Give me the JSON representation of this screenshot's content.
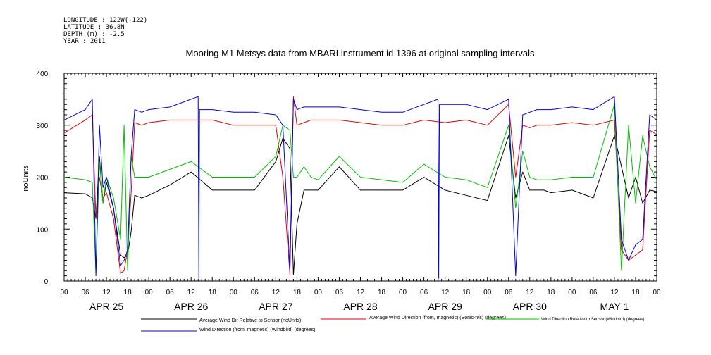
{
  "meta": {
    "longitude": "LONGITUDE : 122W(-122)",
    "latitude": "LATITUDE : 36.8N",
    "depth": "DEPTH (m) : -2.5",
    "year": "YEAR : 2011"
  },
  "chart_data": {
    "type": "line",
    "title": "Mooring M1 Metsys data from MBARI instrument id 1396 at original sampling intervals",
    "ylabel": "noUnits",
    "xlabel": "",
    "ylim": [
      0,
      400
    ],
    "yticks": [
      "0.",
      "100.",
      "200.",
      "300.",
      "400."
    ],
    "xlim_hours": [
      0,
      168
    ],
    "hour_tick_labels": [
      "00",
      "06",
      "12",
      "18",
      "00",
      "06",
      "12",
      "18",
      "00",
      "06",
      "12",
      "18",
      "00",
      "06",
      "12",
      "18",
      "00",
      "06",
      "12",
      "18",
      "00",
      "06",
      "12",
      "18",
      "00",
      "06",
      "12",
      "18",
      "00"
    ],
    "day_labels": [
      "APR 25",
      "APR 26",
      "APR 27",
      "APR 28",
      "APR 29",
      "APR 30",
      "MAY  1"
    ],
    "grid": false,
    "legend_position": "bottom",
    "series": [
      {
        "name": "Average Wind Dir Relative to Sensor (noUnits)",
        "color": "#000000",
        "x": [
          0,
          6,
          8,
          9,
          10,
          11,
          12,
          14,
          16,
          17,
          18,
          19,
          20,
          22,
          24,
          30,
          36,
          42,
          48,
          54,
          60,
          62,
          64,
          65,
          66,
          68,
          70,
          72,
          78,
          84,
          88,
          90,
          96,
          102,
          108,
          114,
          120,
          126,
          128,
          130,
          132,
          134,
          136,
          138,
          144,
          150,
          156,
          160,
          162,
          164,
          166,
          168
        ],
        "y": [
          170,
          168,
          160,
          120,
          240,
          150,
          190,
          140,
          50,
          45,
          50,
          95,
          165,
          160,
          165,
          185,
          210,
          175,
          175,
          175,
          230,
          275,
          255,
          12,
          110,
          175,
          175,
          175,
          220,
          175,
          175,
          175,
          175,
          200,
          175,
          165,
          155,
          280,
          160,
          210,
          175,
          175,
          175,
          170,
          175,
          160,
          280,
          160,
          200,
          150,
          175,
          172
        ]
      },
      {
        "name": "Average Wind Direction (from, magnetic) (Sonic-n/s) (degrees)",
        "color": "#e00000",
        "x": [
          0,
          6,
          8,
          9,
          10,
          11,
          12,
          14,
          16,
          17,
          18,
          19,
          20,
          22,
          24,
          30,
          36,
          42,
          48,
          54,
          60,
          62,
          64,
          65,
          66,
          68,
          70,
          72,
          78,
          84,
          90,
          96,
          102,
          108,
          114,
          120,
          126,
          128,
          130,
          132,
          134,
          136,
          138,
          144,
          150,
          156,
          158,
          160,
          162,
          164,
          166,
          168
        ],
        "y": [
          285,
          310,
          320,
          120,
          200,
          160,
          170,
          120,
          15,
          20,
          60,
          170,
          305,
          300,
          305,
          310,
          310,
          310,
          300,
          300,
          300,
          200,
          12,
          355,
          300,
          305,
          310,
          310,
          310,
          305,
          300,
          300,
          310,
          305,
          310,
          300,
          340,
          200,
          300,
          295,
          300,
          300,
          300,
          305,
          300,
          310,
          60,
          40,
          50,
          60,
          290,
          282
        ]
      },
      {
        "name": "Wind Direction Relative to Sensor (Windbird) (degrees)",
        "color": "#00c000",
        "x": [
          0,
          6,
          8,
          9,
          10,
          11,
          12,
          14,
          16,
          17,
          18,
          19,
          20,
          22,
          24,
          30,
          36,
          42,
          48,
          54,
          60,
          62,
          64,
          65,
          66,
          68,
          70,
          72,
          78,
          84,
          90,
          96,
          102,
          108,
          114,
          120,
          126,
          128,
          130,
          132,
          134,
          136,
          138,
          144,
          150,
          156,
          158,
          160,
          162,
          164,
          166,
          168
        ],
        "y": [
          200,
          195,
          190,
          15,
          230,
          150,
          200,
          160,
          80,
          300,
          20,
          240,
          200,
          200,
          200,
          215,
          230,
          200,
          200,
          200,
          240,
          300,
          290,
          200,
          200,
          220,
          200,
          195,
          240,
          200,
          195,
          190,
          225,
          200,
          195,
          180,
          300,
          140,
          250,
          200,
          195,
          195,
          195,
          200,
          200,
          340,
          20,
          300,
          150,
          280,
          220,
          195
        ]
      },
      {
        "name": "Wind Direction (from, magnetic) (Windbird) (degrees)",
        "color": "#0000e0",
        "x": [
          0,
          6,
          8,
          9,
          10,
          11,
          12,
          14,
          16,
          17,
          18,
          19,
          20,
          22,
          24,
          30,
          38,
          38.2,
          38.4,
          42,
          48,
          54,
          60,
          62,
          64,
          65,
          66,
          68,
          70,
          72,
          78,
          84,
          90,
          96,
          106,
          106.2,
          106.4,
          108,
          114,
          120,
          126,
          128,
          130,
          132,
          134,
          136,
          138,
          144,
          150,
          156,
          158,
          160,
          162,
          164,
          166,
          168
        ],
        "y": [
          310,
          330,
          350,
          10,
          300,
          180,
          200,
          140,
          30,
          40,
          60,
          240,
          330,
          325,
          330,
          335,
          355,
          5,
          330,
          330,
          325,
          325,
          320,
          300,
          20,
          350,
          330,
          335,
          335,
          335,
          335,
          330,
          325,
          325,
          350,
          5,
          340,
          340,
          340,
          330,
          350,
          10,
          320,
          325,
          330,
          330,
          330,
          335,
          330,
          355,
          80,
          40,
          70,
          80,
          320,
          310
        ]
      }
    ]
  }
}
